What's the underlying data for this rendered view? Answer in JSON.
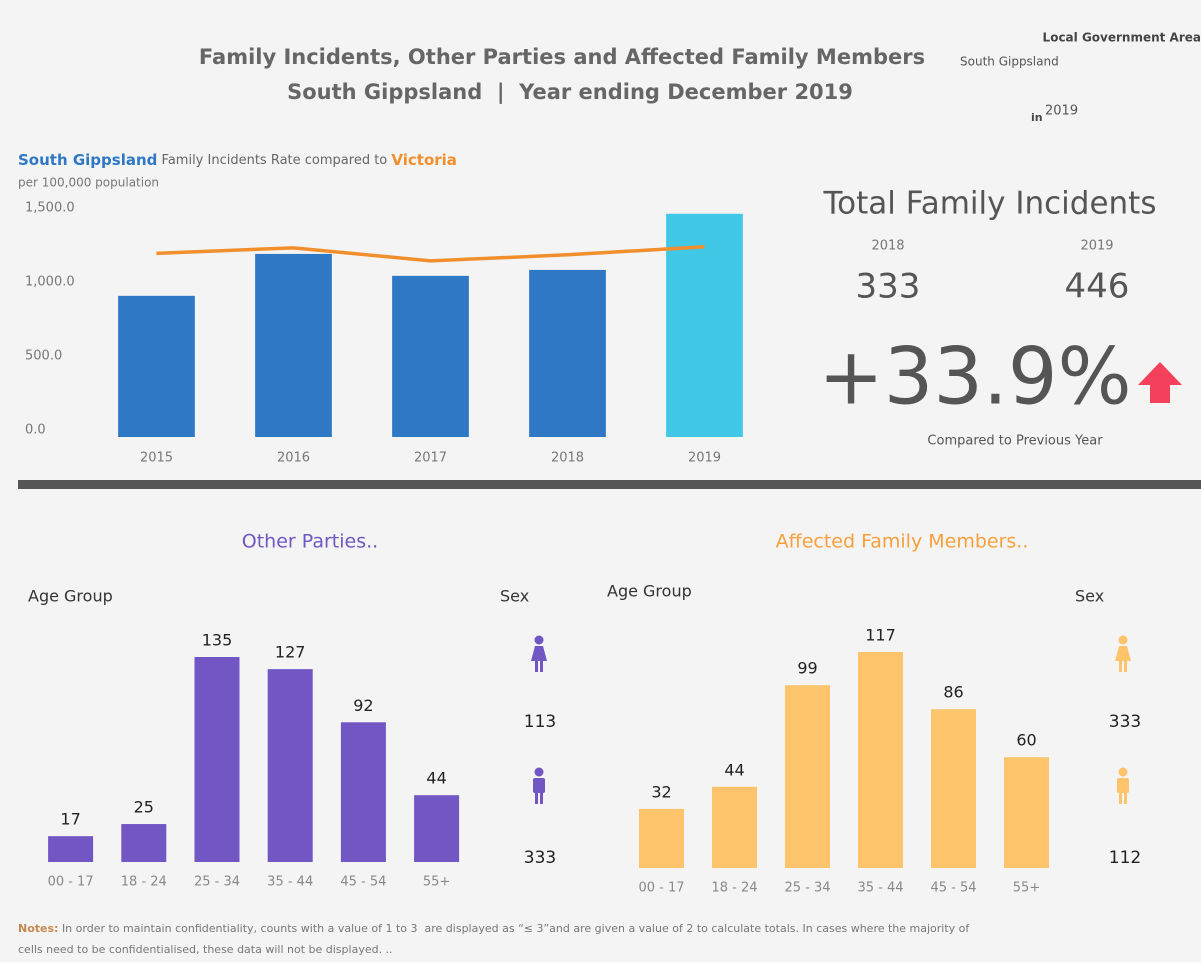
{
  "header": {
    "title": "Family Incidents, Other Parties and Affected Family Members",
    "subtitle": "South Gippsland  |  Year ending December 2019"
  },
  "filter": {
    "label": "Local Government Area",
    "value": "South Gippsland",
    "in_label": "in",
    "year": "2019"
  },
  "kpi": {
    "title": "Total Family Incidents",
    "years": [
      "2018",
      "2019"
    ],
    "values": [
      333,
      446
    ],
    "change": "+33.9%",
    "caption": "Compared to Previous Year"
  },
  "notes": {
    "label": "Notes:",
    "lines": [
      "In order to maintain confidentiality, counts with a value of 1 to 3  are displayed as “≤ 3”and are given a value of 2 to calculate totals. In cases where the majority of",
      "cells need to be confidentialised, these data will not be displayed. .."
    ]
  },
  "chart_data": [
    {
      "type": "bar",
      "title": [
        "South Gippsland",
        "Family Incidents Rate compared to",
        "Victoria"
      ],
      "subtitle": "per 100,000 population",
      "categories": [
        "2015",
        "2016",
        "2017",
        "2018",
        "2019"
      ],
      "series": [
        {
          "name": "South Gippsland",
          "color": "#2f78c5",
          "colors": [
            "#2f78c5",
            "#2f78c5",
            "#2f78c5",
            "#2f78c5",
            "#41c8e6"
          ],
          "values": [
            953,
            1236,
            1088,
            1128,
            1507
          ]
        },
        {
          "name": "Victoria",
          "type": "line",
          "color": "#f28e2b",
          "values": [
            1240,
            1277,
            1189,
            1230,
            1284
          ]
        }
      ],
      "ylim": [
        0,
        1600
      ],
      "yticks": [
        {
          "value": 0,
          "label": "0.0"
        },
        {
          "value": 500,
          "label": "500.0"
        },
        {
          "value": 1000,
          "label": "1,000.0"
        },
        {
          "value": 1500,
          "label": "1,500.0"
        }
      ]
    },
    {
      "type": "bar",
      "title": "Other Parties..",
      "xlabel": "Age Group",
      "categories": [
        "00 - 17",
        "18 - 24",
        "25 - 34",
        "35 - 44",
        "45 - 54",
        "55+"
      ],
      "values": [
        17,
        25,
        135,
        127,
        92,
        44
      ],
      "color": "#7156c4",
      "sex": {
        "label": "Sex",
        "values": [
          113,
          333
        ]
      }
    },
    {
      "type": "bar",
      "title": "Affected Family Members..",
      "xlabel": "Age Group",
      "categories": [
        "00 - 17",
        "18 - 24",
        "25 - 34",
        "35 - 44",
        "45 - 54",
        "55+"
      ],
      "values": [
        32,
        44,
        99,
        117,
        86,
        60
      ],
      "color": "#fdc46c",
      "sex": {
        "label": "Sex",
        "values": [
          333,
          112
        ]
      }
    }
  ]
}
